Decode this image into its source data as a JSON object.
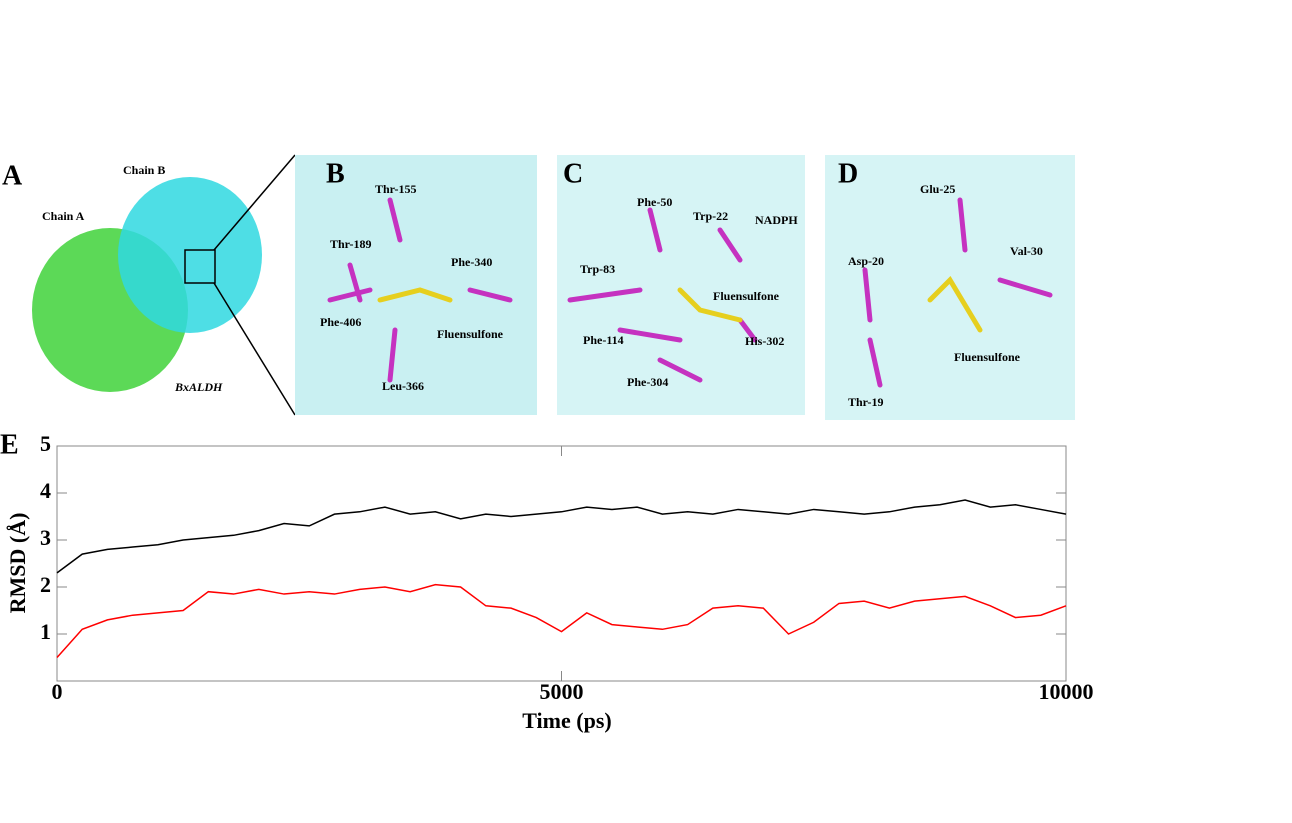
{
  "panels": [
    {
      "letter": "A",
      "labels": [
        "Chain B",
        "Chain A",
        "BxALDH"
      ]
    },
    {
      "letter": "B",
      "labels": [
        "Thr-155",
        "Thr-189",
        "Phe-340",
        "Phe-406",
        "Fluensulfone",
        "Leu-366"
      ]
    },
    {
      "letter": "C",
      "labels": [
        "Phe-50",
        "Trp-22",
        "NADPH",
        "Trp-83",
        "Fluensulfone",
        "Phe-114",
        "His-302",
        "Phe-304"
      ]
    },
    {
      "letter": "D",
      "labels": [
        "Glu-25",
        "Asp-20",
        "Val-30",
        "Fluensulfone",
        "Thr-19"
      ]
    }
  ],
  "chart_data": {
    "type": "line",
    "panel_label": "E",
    "xlabel": "Time (ps)",
    "ylabel": "RMSD (Å)",
    "x": [
      0,
      250,
      500,
      750,
      1000,
      1250,
      1500,
      1750,
      2000,
      2250,
      2500,
      2750,
      3000,
      3250,
      3500,
      3750,
      4000,
      4250,
      4500,
      4750,
      5000,
      5250,
      5500,
      5750,
      6000,
      6250,
      6500,
      6750,
      7000,
      7250,
      7500,
      7750,
      8000,
      8250,
      8500,
      8750,
      9000,
      9250,
      9500,
      9750,
      10000
    ],
    "series": [
      {
        "color": "#000000",
        "values": [
          2.3,
          2.7,
          2.8,
          2.85,
          2.9,
          3.0,
          3.05,
          3.1,
          3.2,
          3.35,
          3.3,
          3.55,
          3.6,
          3.7,
          3.55,
          3.6,
          3.45,
          3.55,
          3.5,
          3.55,
          3.6,
          3.7,
          3.65,
          3.7,
          3.55,
          3.6,
          3.55,
          3.65,
          3.6,
          3.55,
          3.65,
          3.6,
          3.55,
          3.6,
          3.7,
          3.75,
          3.85,
          3.7,
          3.75,
          3.65,
          3.55
        ]
      },
      {
        "color": "#ff0000",
        "values": [
          0.5,
          1.1,
          1.3,
          1.4,
          1.45,
          1.5,
          1.9,
          1.85,
          1.95,
          1.85,
          1.9,
          1.85,
          1.95,
          2.0,
          1.9,
          2.05,
          2.0,
          1.6,
          1.55,
          1.35,
          1.05,
          1.45,
          1.2,
          1.15,
          1.1,
          1.2,
          1.55,
          1.6,
          1.55,
          1.0,
          1.25,
          1.65,
          1.7,
          1.55,
          1.7,
          1.75,
          1.8,
          1.6,
          1.35,
          1.4,
          1.6
        ]
      }
    ],
    "xlim": [
      0,
      10000
    ],
    "xticks": [
      0,
      5000,
      10000
    ],
    "ylim": [
      0,
      5
    ],
    "yticks": [
      1,
      2,
      3,
      4,
      5
    ]
  }
}
